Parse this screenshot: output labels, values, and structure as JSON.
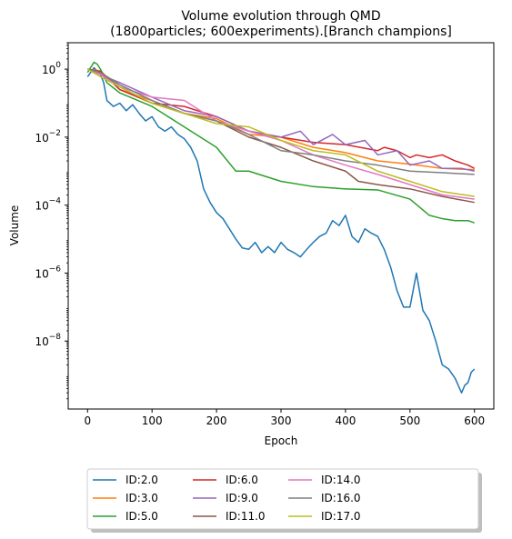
{
  "chart_data": {
    "type": "line",
    "title": "Volume evolution through QMD",
    "subtitle": "(1800particles; 600experiments).[Branch champions]",
    "xlabel": "Epoch",
    "ylabel": "Volume",
    "xlim": [
      -30,
      630
    ],
    "ylim": [
      1e-10,
      6
    ],
    "yscale": "log",
    "grid": false,
    "legend": "below",
    "x_ticks": [
      0,
      100,
      200,
      300,
      400,
      500,
      600
    ],
    "x_tick_labels": [
      "0",
      "100",
      "200",
      "300",
      "400",
      "500",
      "600"
    ],
    "y_ticks": [
      1e-08,
      1e-06,
      0.0001,
      0.01,
      1
    ],
    "y_tick_bases": [
      "10",
      "10",
      "10",
      "10",
      "10"
    ],
    "y_tick_exponents": [
      "−8",
      "−6",
      "−4",
      "−2",
      "0"
    ],
    "series": [
      {
        "name": "ID:2.0",
        "color": "#1f77b4",
        "x": [
          0,
          10,
          20,
          25,
          30,
          40,
          50,
          60,
          70,
          80,
          90,
          100,
          110,
          120,
          130,
          140,
          150,
          160,
          170,
          180,
          190,
          200,
          210,
          220,
          230,
          240,
          250,
          260,
          270,
          280,
          290,
          300,
          310,
          320,
          330,
          340,
          350,
          360,
          370,
          380,
          390,
          400,
          410,
          420,
          430,
          440,
          450,
          460,
          470,
          480,
          490,
          500,
          510,
          520,
          530,
          540,
          550,
          560,
          570,
          580,
          585,
          590,
          595,
          600
        ],
        "y": [
          0.6,
          1.1,
          0.7,
          0.4,
          0.12,
          0.08,
          0.1,
          0.06,
          0.09,
          0.05,
          0.03,
          0.04,
          0.02,
          0.015,
          0.02,
          0.012,
          0.009,
          0.005,
          0.002,
          0.0003,
          0.00012,
          6e-05,
          4e-05,
          2e-05,
          1e-05,
          5.5e-06,
          5e-06,
          8e-06,
          4e-06,
          6e-06,
          4e-06,
          8e-06,
          5e-06,
          4e-06,
          3e-06,
          5e-06,
          8e-06,
          1.2e-05,
          1.5e-05,
          3.5e-05,
          2.5e-05,
          5e-05,
          1.2e-05,
          8e-06,
          2e-05,
          1.5e-05,
          1.2e-05,
          5e-06,
          1.5e-06,
          3e-07,
          1e-07,
          1e-07,
          1e-06,
          8e-08,
          4e-08,
          1e-08,
          2e-09,
          1.5e-09,
          8e-10,
          3e-10,
          5e-10,
          6e-10,
          1.2e-09,
          1.5e-09
        ]
      },
      {
        "name": "ID:3.0",
        "color": "#ff7f0e",
        "x": [
          0,
          20,
          50,
          100,
          150,
          200,
          250,
          300,
          350,
          400,
          450,
          500,
          550,
          600
        ],
        "y": [
          1.0,
          0.9,
          0.25,
          0.12,
          0.05,
          0.035,
          0.012,
          0.01,
          0.005,
          0.0035,
          0.002,
          0.0016,
          0.0012,
          0.0011
        ]
      },
      {
        "name": "ID:5.0",
        "color": "#2ca02c",
        "x": [
          0,
          10,
          15,
          20,
          30,
          50,
          100,
          150,
          200,
          230,
          250,
          300,
          350,
          400,
          450,
          500,
          530,
          550,
          570,
          590,
          600
        ],
        "y": [
          0.8,
          1.6,
          1.4,
          1.0,
          0.4,
          0.2,
          0.08,
          0.02,
          0.005,
          0.001,
          0.001,
          0.0005,
          0.00035,
          0.0003,
          0.00028,
          0.00015,
          5e-05,
          4e-05,
          3.5e-05,
          3.5e-05,
          3e-05
        ]
      },
      {
        "name": "ID:6.0",
        "color": "#d62728",
        "x": [
          0,
          20,
          50,
          100,
          150,
          200,
          250,
          300,
          350,
          400,
          450,
          460,
          480,
          500,
          510,
          530,
          550,
          570,
          590,
          600
        ],
        "y": [
          1.0,
          0.85,
          0.25,
          0.1,
          0.08,
          0.04,
          0.015,
          0.01,
          0.007,
          0.006,
          0.004,
          0.005,
          0.004,
          0.0025,
          0.003,
          0.0025,
          0.003,
          0.002,
          0.0015,
          0.0012
        ]
      },
      {
        "name": "ID:9.0",
        "color": "#9467bd",
        "x": [
          0,
          20,
          50,
          100,
          150,
          200,
          250,
          300,
          330,
          350,
          380,
          400,
          430,
          450,
          480,
          500,
          530,
          550,
          580,
          600
        ],
        "y": [
          1.0,
          0.7,
          0.4,
          0.15,
          0.06,
          0.04,
          0.015,
          0.01,
          0.015,
          0.006,
          0.012,
          0.006,
          0.008,
          0.003,
          0.004,
          0.0015,
          0.002,
          0.0012,
          0.0012,
          0.001
        ]
      },
      {
        "name": "ID:11.0",
        "color": "#8c564b",
        "x": [
          0,
          20,
          50,
          100,
          150,
          200,
          250,
          300,
          350,
          400,
          420,
          450,
          500,
          550,
          600
        ],
        "y": [
          1.0,
          0.8,
          0.3,
          0.1,
          0.05,
          0.03,
          0.01,
          0.005,
          0.002,
          0.001,
          0.0005,
          0.0004,
          0.0003,
          0.00018,
          0.00012
        ]
      },
      {
        "name": "ID:14.0",
        "color": "#e377c2",
        "x": [
          0,
          20,
          50,
          100,
          150,
          200,
          250,
          300,
          350,
          400,
          450,
          500,
          550,
          600
        ],
        "y": [
          1.0,
          0.7,
          0.3,
          0.15,
          0.12,
          0.03,
          0.015,
          0.008,
          0.003,
          0.0015,
          0.0008,
          0.0004,
          0.0002,
          0.00015
        ]
      },
      {
        "name": "ID:16.0",
        "color": "#7f7f7f",
        "x": [
          0,
          20,
          50,
          100,
          150,
          200,
          250,
          300,
          350,
          400,
          450,
          500,
          550,
          600
        ],
        "y": [
          1.0,
          0.8,
          0.35,
          0.12,
          0.05,
          0.03,
          0.012,
          0.004,
          0.003,
          0.002,
          0.0015,
          0.001,
          0.0009,
          0.0008
        ]
      },
      {
        "name": "ID:17.0",
        "color": "#bcbd22",
        "x": [
          0,
          20,
          50,
          100,
          150,
          200,
          250,
          300,
          350,
          400,
          450,
          500,
          550,
          600
        ],
        "y": [
          1.0,
          0.6,
          0.3,
          0.1,
          0.05,
          0.025,
          0.02,
          0.008,
          0.004,
          0.003,
          0.001,
          0.0005,
          0.00025,
          0.00018
        ]
      }
    ]
  }
}
